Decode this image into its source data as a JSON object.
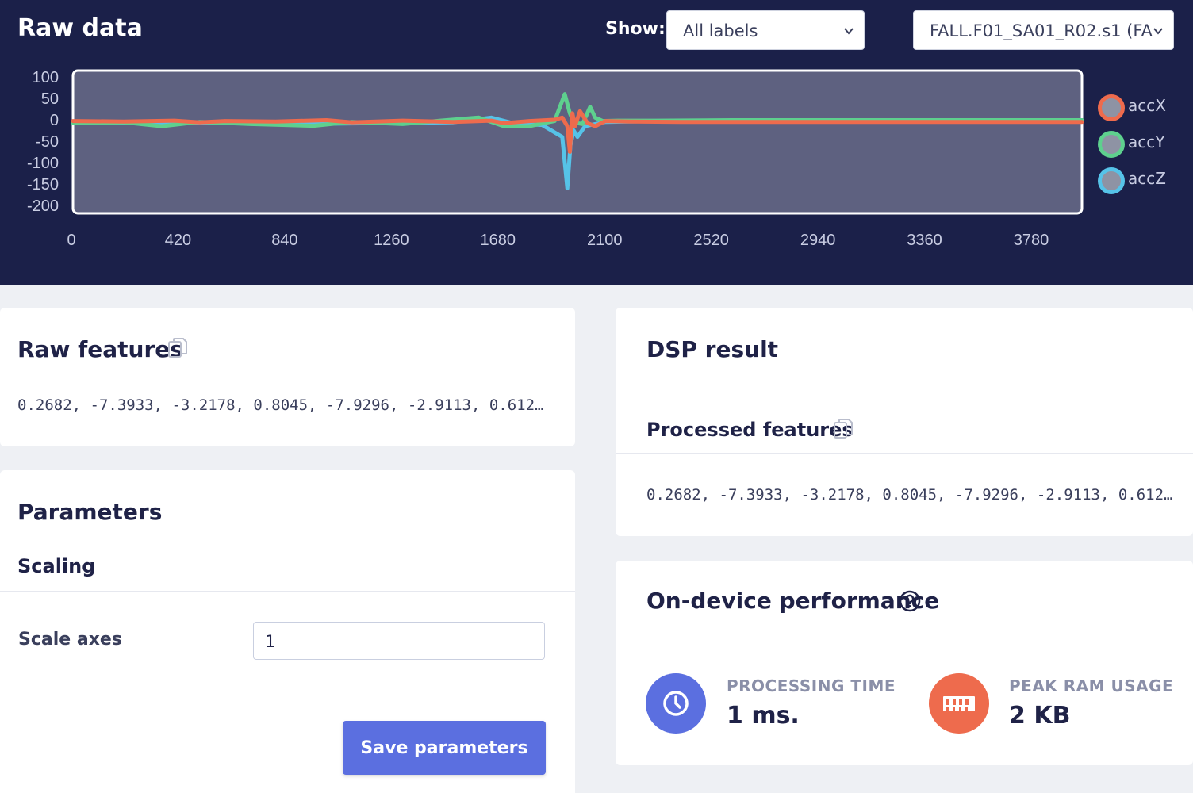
{
  "raw_data": {
    "title": "Raw data",
    "show_label": "Show:",
    "labels_select": "All labels",
    "sample_select": "FALL.F01_SA01_R02.s1 (FA"
  },
  "chart_data": {
    "type": "line",
    "xlim": [
      0,
      3980
    ],
    "ylim": [
      -215,
      120
    ],
    "x_ticks": [
      "0",
      "420",
      "840",
      "1260",
      "1680",
      "2100",
      "2520",
      "2940",
      "3360",
      "3780"
    ],
    "y_ticks": [
      "100",
      "50",
      "0",
      "-50",
      "-100",
      "-150",
      "-200"
    ],
    "grid": false,
    "legend_position": "right",
    "series": [
      {
        "name": "accX",
        "color": "#ee6b4d",
        "x": [
          0,
          200,
          400,
          500,
          600,
          800,
          1000,
          1100,
          1300,
          1500,
          1650,
          1700,
          1800,
          1900,
          1930,
          1950,
          1960,
          1970,
          1980,
          2000,
          2030,
          2060,
          2100,
          2200,
          2400,
          2800,
          3200,
          3600,
          3980
        ],
        "y": [
          -3,
          -4,
          -2,
          -6,
          -3,
          -4,
          -1,
          -6,
          -2,
          -5,
          -2,
          -8,
          -3,
          0,
          5,
          -15,
          -75,
          15,
          -15,
          20,
          -8,
          -15,
          -3,
          -4,
          -5,
          -5,
          -5,
          -5,
          -5
        ]
      },
      {
        "name": "accY",
        "color": "#5ed08e",
        "x": [
          0,
          200,
          350,
          500,
          700,
          950,
          1100,
          1300,
          1450,
          1600,
          1700,
          1800,
          1900,
          1940,
          1960,
          1975,
          1990,
          2010,
          2040,
          2060,
          2090,
          2150,
          2300,
          2600,
          3000,
          3400,
          3980
        ],
        "y": [
          -8,
          -6,
          -15,
          -5,
          -10,
          -14,
          -5,
          -10,
          -2,
          5,
          -15,
          -15,
          -3,
          60,
          15,
          -5,
          -8,
          -10,
          30,
          5,
          -3,
          -2,
          -2,
          -1,
          -1,
          -1,
          -1
        ]
      },
      {
        "name": "accZ",
        "color": "#56c3e8",
        "x": [
          0,
          300,
          600,
          900,
          1200,
          1500,
          1650,
          1750,
          1850,
          1930,
          1950,
          1962,
          1975,
          1990,
          2020,
          2060,
          2100,
          2300,
          2700,
          3200,
          3700,
          3980
        ],
        "y": [
          -6,
          -8,
          -8,
          -10,
          -8,
          -6,
          5,
          -10,
          -12,
          -40,
          -160,
          -60,
          -25,
          -40,
          -15,
          -10,
          -5,
          -3,
          -2,
          -2,
          -2,
          -2
        ]
      }
    ]
  },
  "raw_features": {
    "title": "Raw features",
    "values": "0.2682, -7.3933, -3.2178, 0.8045, -7.9296, -2.9113, 0.612…"
  },
  "parameters": {
    "title": "Parameters",
    "section": "Scaling",
    "scale_axes_label": "Scale axes",
    "scale_axes_value": "1",
    "save_label": "Save parameters"
  },
  "dsp_result": {
    "title": "DSP result",
    "processed_title": "Processed features",
    "values": "0.2682, -7.3933, -3.2178, 0.8045, -7.9296, -2.9113, 0.612…"
  },
  "performance": {
    "title": "On-device performance",
    "processing_label": "PROCESSING TIME",
    "processing_value": "1 ms.",
    "ram_label": "PEAK RAM USAGE",
    "ram_value": "2 KB",
    "processing_color": "#5b6fe0",
    "ram_color": "#ee6b4d"
  }
}
